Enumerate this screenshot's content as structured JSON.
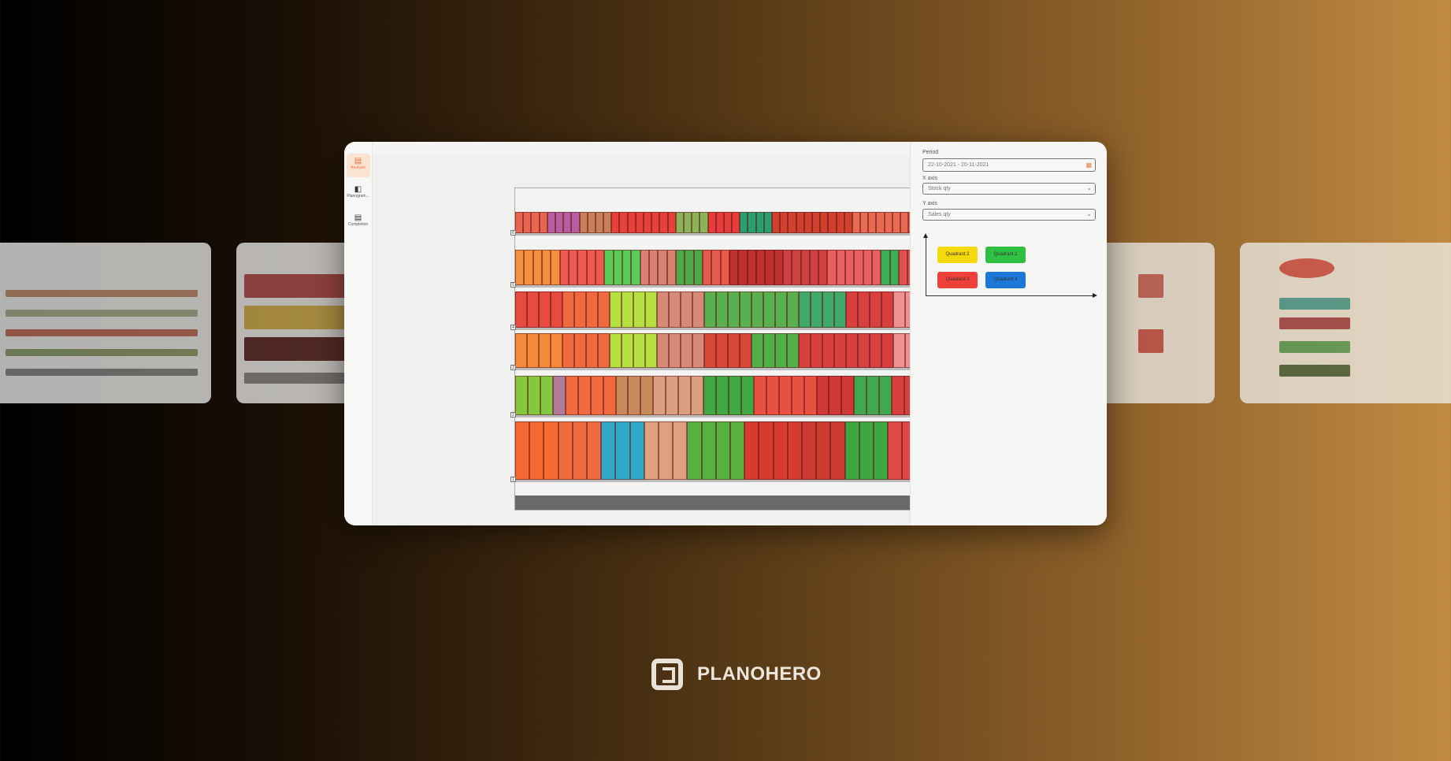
{
  "sidebar": {
    "items": [
      {
        "label": "Analysis",
        "icon": "chart-icon",
        "active": true
      },
      {
        "label": "Planogram...",
        "icon": "planogram-icon",
        "active": false
      },
      {
        "label": "Completion",
        "icon": "table-icon",
        "active": false
      }
    ]
  },
  "panel": {
    "period_label": "Period",
    "period_value": "22-10-2021 - 20-11-2021",
    "x_axis_label": "X axis",
    "x_axis_value": "Stock qty",
    "y_axis_label": "Y axis",
    "y_axis_value": "Sales qty",
    "quadrants": [
      {
        "label": "Quadrant 2",
        "color": "#f5d90a"
      },
      {
        "label": "Quadrant 1",
        "color": "#2fc043"
      },
      {
        "label": "Quadrant 3",
        "color": "#f0403a"
      },
      {
        "label": "Quadrant 4",
        "color": "#1c78d8"
      }
    ]
  },
  "planogram": {
    "shelf_numbers": [
      "6",
      "5",
      "4",
      "3",
      "2",
      "1"
    ],
    "shelves": [
      [
        [
          "#e86650",
          4
        ],
        [
          "#b65ea0",
          4
        ],
        [
          "#c7805a",
          4
        ],
        [
          "#e8403a",
          8
        ],
        [
          "#8bb35a",
          4
        ],
        [
          "#e83c3c",
          4
        ],
        [
          "#2aa070",
          4
        ],
        [
          "#d0402c",
          10
        ],
        [
          "#e86a50",
          8
        ]
      ],
      [
        [
          "#f59040",
          5
        ],
        [
          "#ee5a50",
          5
        ],
        [
          "#58cc58",
          4
        ],
        [
          "#d88272",
          4
        ],
        [
          "#4ea84a",
          3
        ],
        [
          "#e85a4c",
          3
        ],
        [
          "#c03030",
          6
        ],
        [
          "#d04040",
          5
        ],
        [
          "#e86060",
          6
        ],
        [
          "#3cae58",
          2
        ],
        [
          "#e05050",
          2
        ]
      ],
      [
        [
          "#e84a40",
          4
        ],
        [
          "#f06a40",
          4
        ],
        [
          "#b4e040",
          4
        ],
        [
          "#d88a78",
          4
        ],
        [
          "#58b050",
          8
        ],
        [
          "#40a868",
          4
        ],
        [
          "#d84040",
          4
        ],
        [
          "#f09090",
          2
        ]
      ],
      [
        [
          "#f58a3a",
          4
        ],
        [
          "#f06a40",
          4
        ],
        [
          "#b4e040",
          4
        ],
        [
          "#d88a78",
          4
        ],
        [
          "#d84838",
          4
        ],
        [
          "#50b048",
          4
        ],
        [
          "#d84040",
          8
        ],
        [
          "#f09090",
          2
        ]
      ],
      [
        [
          "#84c840",
          3
        ],
        [
          "#b07a9a",
          1
        ],
        [
          "#f06a40",
          4
        ],
        [
          "#c88a5a",
          3
        ],
        [
          "#d8a080",
          4
        ],
        [
          "#3fa840",
          4
        ],
        [
          "#e85040",
          5
        ],
        [
          "#d03838",
          3
        ],
        [
          "#40a850",
          3
        ],
        [
          "#d84040",
          2
        ]
      ],
      [
        [
          "#f56a30",
          3
        ],
        [
          "#f06a40",
          3
        ],
        [
          "#30a8c8",
          3
        ],
        [
          "#e0a080",
          3
        ],
        [
          "#58b040",
          4
        ],
        [
          "#d83a30",
          4
        ],
        [
          "#cc3a30",
          3
        ],
        [
          "#3ca840",
          3
        ],
        [
          "#e04848",
          2
        ]
      ]
    ]
  },
  "brand": {
    "name": "PLANOHERO"
  }
}
